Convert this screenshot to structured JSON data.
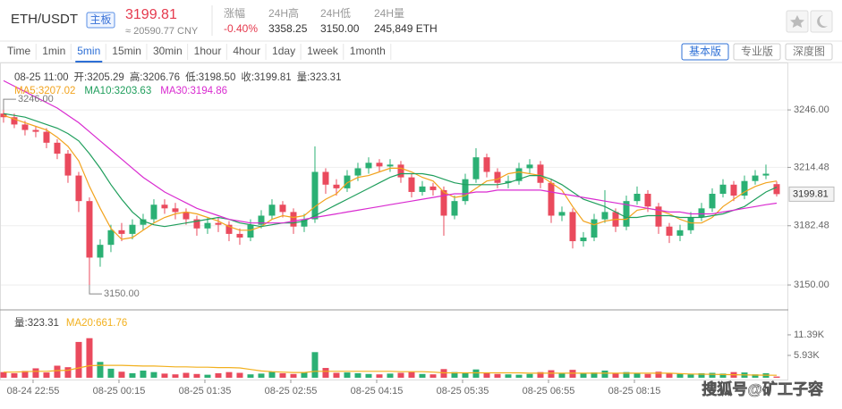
{
  "header": {
    "pair": "ETH/USDT",
    "badge": "主板",
    "price": "3199.81",
    "cny": "≈ 20590.77 CNY",
    "stats": [
      {
        "label": "涨幅",
        "value": "-0.40%"
      },
      {
        "label": "24H高",
        "value": "3358.25"
      },
      {
        "label": "24H低",
        "value": "3150.00"
      },
      {
        "label": "24H量",
        "value": "245,849 ETH"
      }
    ]
  },
  "tabs": {
    "intervals": [
      "Time",
      "1min",
      "5min",
      "15min",
      "30min",
      "1hour",
      "4hour",
      "1day",
      "1week",
      "1month"
    ],
    "active": 2,
    "views": [
      "基本版",
      "专业版",
      "深度图"
    ],
    "active_view": 0
  },
  "chart_data": {
    "type": "candlestick",
    "info": [
      "08-25 11:00",
      "开:3205.29",
      "高:3206.76",
      "低:3198.50",
      "收:3199.81",
      "量:323.31"
    ],
    "up_color": "#2bb074",
    "down_color": "#ea4a5d",
    "candles": {
      "open": [
        3244,
        3242,
        3238,
        3235,
        3234,
        3228,
        3222,
        3210,
        3196,
        3165,
        3172,
        3180,
        3178,
        3183,
        3186,
        3194,
        3192,
        3190,
        3186,
        3181,
        3184,
        3183,
        3178,
        3176,
        3183,
        3188,
        3194,
        3190,
        3182,
        3186,
        3212,
        3205,
        3203,
        3210,
        3214,
        3217,
        3215,
        3216,
        3209,
        3201,
        3204,
        3202,
        3188,
        3196,
        3208,
        3220,
        3212,
        3206,
        3207,
        3214,
        3216,
        3206,
        3188,
        3190,
        3174,
        3176,
        3186,
        3190,
        3182,
        3196,
        3200,
        3193,
        3182,
        3177,
        3180,
        3187,
        3192,
        3200,
        3205,
        3199,
        3207,
        3210,
        3205.29
      ],
      "high": [
        3246,
        3244,
        3240,
        3237,
        3236,
        3230,
        3224,
        3212,
        3198,
        3175,
        3183,
        3184,
        3186,
        3189,
        3197,
        3197,
        3195,
        3192,
        3188,
        3187,
        3187,
        3185,
        3181,
        3186,
        3191,
        3197,
        3196,
        3192,
        3189,
        3226,
        3214,
        3208,
        3213,
        3217,
        3220,
        3219,
        3219,
        3218,
        3211,
        3207,
        3206,
        3204,
        3199,
        3211,
        3225,
        3222,
        3214,
        3210,
        3217,
        3219,
        3218,
        3208,
        3193,
        3192,
        3179,
        3189,
        3202,
        3192,
        3199,
        3204,
        3202,
        3195,
        3184,
        3183,
        3190,
        3195,
        3203,
        3208,
        3207,
        3210,
        3213,
        3216,
        3206.76
      ],
      "low": [
        3239,
        3236,
        3232,
        3231,
        3225,
        3219,
        3206,
        3190,
        3150,
        3160,
        3168,
        3174,
        3175,
        3180,
        3184,
        3189,
        3186,
        3183,
        3177,
        3178,
        3179,
        3174,
        3172,
        3174,
        3181,
        3186,
        3187,
        3178,
        3179,
        3184,
        3200,
        3199,
        3201,
        3207,
        3211,
        3212,
        3212,
        3206,
        3198,
        3199,
        3199,
        3177,
        3186,
        3194,
        3206,
        3209,
        3203,
        3203,
        3205,
        3211,
        3203,
        3184,
        3185,
        3170,
        3171,
        3174,
        3184,
        3179,
        3180,
        3194,
        3190,
        3178,
        3173,
        3174,
        3178,
        3185,
        3190,
        3198,
        3196,
        3197,
        3205,
        3208,
        3198.5
      ],
      "close": [
        3242,
        3238,
        3235,
        3234,
        3228,
        3222,
        3210,
        3196,
        3165,
        3172,
        3180,
        3178,
        3183,
        3186,
        3194,
        3192,
        3190,
        3186,
        3181,
        3184,
        3183,
        3178,
        3176,
        3183,
        3188,
        3194,
        3190,
        3182,
        3186,
        3212,
        3205,
        3203,
        3210,
        3214,
        3217,
        3215,
        3216,
        3209,
        3201,
        3204,
        3202,
        3188,
        3196,
        3208,
        3220,
        3212,
        3206,
        3207,
        3214,
        3216,
        3206,
        3188,
        3190,
        3174,
        3176,
        3186,
        3190,
        3182,
        3196,
        3200,
        3193,
        3182,
        3177,
        3180,
        3187,
        3192,
        3200,
        3205,
        3199,
        3207,
        3210,
        3211,
        3199.81
      ]
    },
    "series": [
      {
        "name": "MA5:3207.02",
        "color": "#f2a31d",
        "values": [
          3243,
          3241,
          3239,
          3237,
          3235,
          3231,
          3226,
          3218,
          3204,
          3192,
          3181,
          3175,
          3176,
          3180,
          3184,
          3187,
          3189,
          3190,
          3189,
          3187,
          3185,
          3182,
          3180,
          3180,
          3182,
          3186,
          3188,
          3187,
          3188,
          3193,
          3197,
          3200,
          3206,
          3209,
          3210,
          3212,
          3214,
          3214,
          3212,
          3209,
          3207,
          3201,
          3198,
          3199,
          3203,
          3207,
          3208,
          3211,
          3212,
          3211,
          3210,
          3206,
          3202,
          3193,
          3185,
          3183,
          3185,
          3186,
          3186,
          3191,
          3192,
          3191,
          3189,
          3186,
          3184,
          3184,
          3187,
          3193,
          3197,
          3201,
          3204,
          3206,
          3207.02
        ]
      },
      {
        "name": "MA10:3203.63",
        "color": "#1f9e5c",
        "values": [
          3244,
          3243,
          3242,
          3240,
          3238,
          3236,
          3233,
          3229,
          3222,
          3214,
          3205,
          3197,
          3190,
          3185,
          3183,
          3182,
          3183,
          3184,
          3185,
          3186,
          3187,
          3186,
          3184,
          3183,
          3182,
          3183,
          3184,
          3184,
          3185,
          3188,
          3191,
          3194,
          3197,
          3200,
          3203,
          3206,
          3209,
          3211,
          3211,
          3211,
          3210,
          3208,
          3206,
          3205,
          3205,
          3205,
          3205,
          3206,
          3208,
          3210,
          3210,
          3208,
          3205,
          3201,
          3197,
          3195,
          3193,
          3190,
          3187,
          3187,
          3188,
          3188,
          3188,
          3187,
          3187,
          3187,
          3188,
          3189,
          3191,
          3193,
          3197,
          3201,
          3203.63
        ]
      },
      {
        "name": "MA30:3194.86",
        "color": "#d92bd0",
        "values": [
          3262,
          3259,
          3256,
          3253,
          3250,
          3247,
          3243,
          3239,
          3234,
          3229,
          3224,
          3219,
          3214,
          3209,
          3205,
          3201,
          3198,
          3195,
          3192,
          3190,
          3188,
          3186,
          3185,
          3184,
          3184,
          3184,
          3184,
          3185,
          3186,
          3187,
          3188,
          3189,
          3190,
          3191,
          3192,
          3193,
          3194,
          3195,
          3196,
          3197,
          3198,
          3199,
          3200,
          3200,
          3201,
          3201,
          3202,
          3202,
          3202,
          3202,
          3202,
          3201,
          3200,
          3199,
          3198,
          3197,
          3196,
          3195,
          3194,
          3193,
          3192,
          3191,
          3190,
          3190,
          3189,
          3189,
          3189,
          3190,
          3191,
          3192,
          3193,
          3194,
          3194.86
        ]
      }
    ],
    "xlim": [
      -0.33,
      73
    ],
    "xticks": [
      {
        "value": 2.75,
        "label": "08-24 22:55"
      },
      {
        "value": 10.75,
        "label": "08-25 00:15"
      },
      {
        "value": 18.75,
        "label": "08-25 01:35"
      },
      {
        "value": 26.75,
        "label": "08-25 02:55"
      },
      {
        "value": 34.75,
        "label": "08-25 04:15"
      },
      {
        "value": 42.75,
        "label": "08-25 05:35"
      },
      {
        "value": 50.75,
        "label": "08-25 06:55"
      },
      {
        "value": 58.75,
        "label": "08-25 08:15"
      }
    ],
    "ylim": [
      3137.3,
      3272
    ],
    "yticks": [
      {
        "value": 3246,
        "label": "3246.00"
      },
      3214.48,
      3182.48,
      {
        "value": 3150,
        "label": "3150.00"
      }
    ],
    "grid": true,
    "annotations": [
      {
        "x": 0,
        "value": 3246,
        "label": "3246.00"
      },
      {
        "x": 8,
        "value": 3150,
        "label": "3150.00"
      }
    ],
    "volume": {
      "legend": "量:323.31",
      "values": [
        1500,
        1200,
        1800,
        2500,
        1400,
        3200,
        2800,
        9500,
        10500,
        4200,
        2400,
        1600,
        1200,
        1900,
        1500,
        1100,
        900,
        1300,
        1000,
        800,
        1200,
        1500,
        1300,
        900,
        1100,
        1600,
        1200,
        1000,
        1400,
        6800,
        2600,
        1300,
        1400,
        1200,
        1000,
        900,
        1100,
        1300,
        1500,
        1000,
        900,
        2300,
        1500,
        1400,
        2200,
        1300,
        1000,
        900,
        800,
        1000,
        1500,
        2000,
        1200,
        2100,
        1300,
        1400,
        1900,
        1200,
        1500,
        1100,
        1000,
        1600,
        1300,
        1100,
        900,
        1200,
        1300,
        1100,
        1500,
        1400,
        900,
        1200,
        323.31
      ],
      "series": [
        {
          "name": "MA20:661.76",
          "color": "#f2b01d",
          "values": [
            1500,
            1500,
            1600,
            1700,
            1700,
            1900,
            2000,
            2600,
            3200,
            3300,
            3300,
            3300,
            3200,
            3100,
            3100,
            3000,
            2900,
            2900,
            2800,
            2800,
            2700,
            2700,
            2600,
            2200,
            1800,
            1600,
            1500,
            1400,
            1400,
            1700,
            1700,
            1700,
            1700,
            1700,
            1700,
            1700,
            1700,
            1600,
            1600,
            1600,
            1500,
            1300,
            1300,
            1300,
            1300,
            1300,
            1300,
            1300,
            1300,
            1200,
            1200,
            1200,
            1200,
            1200,
            1200,
            1200,
            1200,
            1200,
            1200,
            1200,
            1200,
            1200,
            1200,
            1100,
            1000,
            950,
            900,
            850,
            800,
            750,
            720,
            690,
            661.76
          ]
        }
      ],
      "ylim": [
        0,
        17300
      ],
      "yticks": [
        {
          "value": 11390,
          "label": "11.39K"
        },
        {
          "value": 5930,
          "label": "5.93K"
        }
      ]
    }
  },
  "watermark": "搜狐号@矿工子容"
}
